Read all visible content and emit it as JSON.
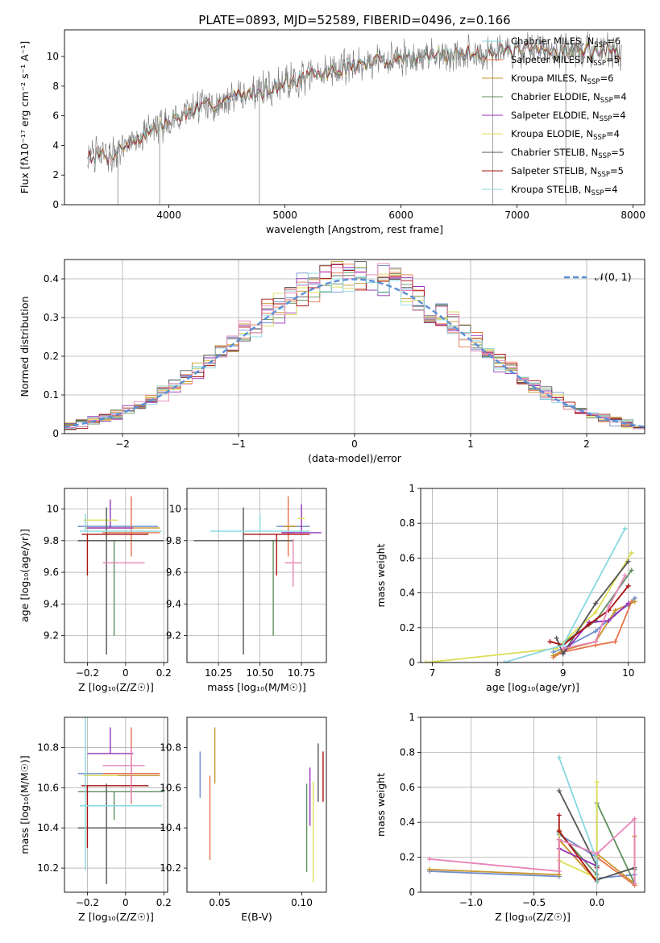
{
  "figure": {
    "title": "PLATE=0893, MJD=52589, FIBERID=0496, z=0.166"
  },
  "palette": [
    "#6f8fcf",
    "#e8734a",
    "#c8952e",
    "#5e8f5e",
    "#9932b8",
    "#dddd55",
    "#555555",
    "#aa1111",
    "#88d8e0",
    "#e884b8"
  ],
  "chart_data": [
    {
      "id": "spectrum",
      "type": "line",
      "xlabel": "wavelength [Angstrom, rest frame]",
      "ylabel": "Flux [fλ10⁻¹⁷ erg cm⁻² s⁻¹ A⁻¹]",
      "xlim": [
        3100,
        8100
      ],
      "ylim": [
        0,
        11.8
      ],
      "xticks": [
        4000,
        5000,
        6000,
        7000,
        8000
      ],
      "yticks": [
        0,
        2,
        4,
        6,
        8,
        10
      ],
      "grid": false,
      "legend_position": "top-right",
      "continuum_x": [
        3300,
        3500,
        3600,
        3800,
        4000,
        4200,
        4500,
        4800,
        5000,
        5300,
        5600,
        6000,
        6400,
        6800,
        7200,
        7600,
        7900
      ],
      "continuum_y": [
        3.4,
        3.3,
        3.9,
        4.8,
        5.6,
        6.3,
        7.1,
        7.7,
        8.2,
        8.8,
        9.4,
        9.9,
        10.1,
        10.3,
        10.4,
        10.4,
        10.3
      ],
      "legend": [
        {
          "label": "Chabrier MILES, N",
          "sub": "SSP",
          "suffix": "=6"
        },
        {
          "label": "Salpeter MILES, N",
          "sub": "SSP",
          "suffix": "=5"
        },
        {
          "label": "Kroupa MILES, N",
          "sub": "SSP",
          "suffix": "=6"
        },
        {
          "label": "Chabrier ELODIE, N",
          "sub": "SSP",
          "suffix": "=4"
        },
        {
          "label": "Salpeter ELODIE, N",
          "sub": "SSP",
          "suffix": "=4"
        },
        {
          "label": "Kroupa ELODIE, N",
          "sub": "SSP",
          "suffix": "=4"
        },
        {
          "label": "Chabrier STELIB, N",
          "sub": "SSP",
          "suffix": "=5"
        },
        {
          "label": "Salpeter STELIB, N",
          "sub": "SSP",
          "suffix": "=5"
        },
        {
          "label": "Kroupa STELIB, N",
          "sub": "SSP",
          "suffix": "=4"
        }
      ]
    },
    {
      "id": "residuals",
      "type": "line",
      "xlabel": "(data-model)/error",
      "ylabel": "Normed distribution",
      "xlim": [
        -2.5,
        2.5
      ],
      "ylim": [
        0,
        0.45
      ],
      "xticks": [
        -2,
        -1,
        0,
        1,
        2
      ],
      "yticks": [
        0.0,
        0.1,
        0.2,
        0.3,
        0.4
      ],
      "grid": true,
      "legend": "𝒩(0, 1)",
      "legend_position": "top-right",
      "bin_width": 0.1
    },
    {
      "id": "age-vs-Z",
      "type": "scatter",
      "xlabel": "Z [log₁₀(Z/Z☉)]",
      "ylabel": "age  [log₁₀(age/yr)]",
      "xlim": [
        -0.32,
        0.22
      ],
      "ylim": [
        9.03,
        10.13
      ],
      "xticks": [
        -0.2,
        0.0,
        0.2
      ],
      "yticks": [
        9.2,
        9.4,
        9.6,
        9.8,
        10.0
      ],
      "grid": true,
      "points": [
        {
          "x": -0.03,
          "y": 9.89,
          "xerr": [
            0.22,
            0.2
          ],
          "yerr": [
            0.0,
            0.0
          ]
        },
        {
          "x": 0.03,
          "y": 9.85,
          "xerr": [
            0.15,
            0.15
          ],
          "yerr": [
            0.15,
            0.23
          ]
        },
        {
          "x": 0.04,
          "y": 9.88,
          "xerr": [
            0.25,
            0.14
          ],
          "yerr": [
            0.0,
            0.0
          ]
        },
        {
          "x": -0.06,
          "y": 9.8,
          "xerr": [
            0.19,
            0.26
          ],
          "yerr": [
            0.6,
            0.0
          ]
        },
        {
          "x": -0.08,
          "y": 9.88,
          "xerr": [
            0.12,
            0.12
          ],
          "yerr": [
            0.0,
            0.18
          ]
        },
        {
          "x": -0.07,
          "y": 9.93,
          "xerr": [
            0.15,
            0.03
          ],
          "yerr": [
            0.0,
            0.0
          ]
        },
        {
          "x": -0.1,
          "y": 9.8,
          "xerr": [
            0.15,
            0.3
          ],
          "yerr": [
            0.72,
            0.21
          ]
        },
        {
          "x": -0.2,
          "y": 9.84,
          "xerr": [
            0.03,
            0.32
          ],
          "yerr": [
            0.26,
            0.0
          ]
        },
        {
          "x": -0.21,
          "y": 9.86,
          "xerr": [
            0.03,
            0.4
          ],
          "yerr": [
            0.0,
            0.11
          ]
        },
        {
          "x": 0.03,
          "y": 9.66,
          "xerr": [
            0.15,
            0.07
          ],
          "yerr": [
            0.0,
            0.0
          ]
        }
      ]
    },
    {
      "id": "age-vs-mass",
      "type": "scatter",
      "xlabel": "mass [log₁₀(M/M☉)]",
      "ylabel": "",
      "xlim": [
        10.06,
        10.9
      ],
      "ylim": [
        9.03,
        10.13
      ],
      "xticks": [
        10.25,
        10.5,
        10.75
      ],
      "xticklabels": [
        "10.25",
        "10.50",
        "10.75"
      ],
      "yticks": [
        9.2,
        9.4,
        9.6,
        9.8,
        10.0
      ],
      "grid": true,
      "points": [
        {
          "x": 10.7,
          "y": 9.89,
          "xerr": [
            0.1,
            0.1
          ],
          "yerr": [
            0.0,
            0.0
          ]
        },
        {
          "x": 10.67,
          "y": 9.85,
          "xerr": [
            0.04,
            0.04
          ],
          "yerr": [
            0.15,
            0.23
          ]
        },
        {
          "x": 10.68,
          "y": 9.89,
          "xerr": [
            0.04,
            0.04
          ],
          "yerr": [
            0.0,
            0.0
          ]
        },
        {
          "x": 10.58,
          "y": 9.8,
          "xerr": [
            0.02,
            0.02
          ],
          "yerr": [
            0.6,
            0.0
          ]
        },
        {
          "x": 10.75,
          "y": 9.85,
          "xerr": [
            0.12,
            0.12
          ],
          "yerr": [
            0.0,
            0.18
          ]
        },
        {
          "x": 10.75,
          "y": 9.94,
          "xerr": [
            0.02,
            0.02
          ],
          "yerr": [
            0.0,
            0.0
          ]
        },
        {
          "x": 10.4,
          "y": 9.8,
          "xerr": [
            0.3,
            0.3
          ],
          "yerr": [
            0.72,
            0.21
          ]
        },
        {
          "x": 10.6,
          "y": 9.84,
          "xerr": [
            0.2,
            0.2
          ],
          "yerr": [
            0.26,
            0.0
          ]
        },
        {
          "x": 10.5,
          "y": 9.86,
          "xerr": [
            0.3,
            0.3
          ],
          "yerr": [
            0.0,
            0.11
          ]
        },
        {
          "x": 10.7,
          "y": 9.66,
          "xerr": [
            0.05,
            0.05
          ],
          "yerr": [
            0.15,
            0.15
          ]
        }
      ]
    },
    {
      "id": "weight-vs-age",
      "type": "line",
      "xlabel": "age  [log₁₀(age/yr)]",
      "ylabel": "mass weight",
      "xlim": [
        6.82,
        10.25
      ],
      "ylim": [
        0,
        1.0
      ],
      "xticks": [
        7,
        8,
        9,
        10
      ],
      "yticks": [
        0.0,
        0.2,
        0.4,
        0.6,
        0.8,
        1.0
      ],
      "grid": true,
      "series": [
        {
          "x": [
            8.85,
            9.0,
            9.5,
            9.8,
            10.0,
            10.1
          ],
          "y": [
            0.06,
            0.08,
            0.18,
            0.28,
            0.33,
            0.37
          ]
        },
        {
          "x": [
            8.85,
            9.0,
            9.5,
            9.8,
            10.05
          ],
          "y": [
            0.03,
            0.06,
            0.1,
            0.12,
            0.35
          ]
        },
        {
          "x": [
            8.85,
            9.0,
            9.5,
            9.8,
            10.1
          ],
          "y": [
            0.04,
            0.07,
            0.12,
            0.3,
            0.35
          ]
        },
        {
          "x": [
            8.95,
            9.5,
            10.05
          ],
          "y": [
            0.1,
            0.24,
            0.53
          ]
        },
        {
          "x": [
            9.0,
            9.4,
            9.7,
            10.0
          ],
          "y": [
            0.05,
            0.23,
            0.24,
            0.34
          ]
        },
        {
          "x": [
            6.9,
            8.9,
            9.5,
            10.05
          ],
          "y": [
            0.0,
            0.08,
            0.29,
            0.63
          ]
        },
        {
          "x": [
            8.9,
            9.0,
            9.5,
            10.0
          ],
          "y": [
            0.14,
            0.05,
            0.34,
            0.58
          ]
        },
        {
          "x": [
            8.8,
            9.0,
            9.4,
            9.7,
            10.0
          ],
          "y": [
            0.12,
            0.1,
            0.22,
            0.3,
            0.44
          ]
        },
        {
          "x": [
            8.1,
            9.0,
            9.95
          ],
          "y": [
            0.0,
            0.1,
            0.77
          ]
        },
        {
          "x": [
            9.0,
            9.5,
            9.7,
            9.95
          ],
          "y": [
            0.08,
            0.12,
            0.32,
            0.5
          ]
        }
      ]
    },
    {
      "id": "mass-vs-Z",
      "type": "scatter",
      "xlabel": "Z [log₁₀(Z/Z☉)]",
      "ylabel": "mass [log₁₀(M/M☉)]",
      "xlim": [
        -0.32,
        0.22
      ],
      "ylim": [
        10.08,
        10.95
      ],
      "xticks": [
        -0.2,
        0.0,
        0.2
      ],
      "yticks": [
        10.2,
        10.4,
        10.6,
        10.8
      ],
      "grid": true,
      "points": [
        {
          "x": -0.03,
          "y": 10.67,
          "xerr": [
            0.22,
            0.2
          ],
          "yerr": [
            0.0,
            0.0
          ]
        },
        {
          "x": 0.03,
          "y": 10.67,
          "xerr": [
            0.15,
            0.15
          ],
          "yerr": [
            0.15,
            0.23
          ]
        },
        {
          "x": 0.04,
          "y": 10.66,
          "xerr": [
            0.25,
            0.14
          ],
          "yerr": [
            0.0,
            0.0
          ]
        },
        {
          "x": -0.06,
          "y": 10.58,
          "xerr": [
            0.19,
            0.26
          ],
          "yerr": [
            0.14,
            0.0
          ]
        },
        {
          "x": -0.08,
          "y": 10.77,
          "xerr": [
            0.12,
            0.12
          ],
          "yerr": [
            0.0,
            0.13
          ]
        },
        {
          "x": -0.07,
          "y": 10.66,
          "xerr": [
            0.15,
            0.03
          ],
          "yerr": [
            0.0,
            0.0
          ]
        },
        {
          "x": -0.1,
          "y": 10.4,
          "xerr": [
            0.15,
            0.3
          ],
          "yerr": [
            0.28,
            0.22
          ]
        },
        {
          "x": -0.2,
          "y": 10.61,
          "xerr": [
            0.03,
            0.32
          ],
          "yerr": [
            0.31,
            0.0
          ]
        },
        {
          "x": -0.21,
          "y": 10.51,
          "xerr": [
            0.03,
            0.4
          ],
          "yerr": [
            0.32,
            0.46
          ]
        },
        {
          "x": 0.03,
          "y": 10.71,
          "xerr": [
            0.15,
            0.07
          ],
          "yerr": [
            0.18,
            0.09
          ]
        }
      ]
    },
    {
      "id": "mass-vs-EBV",
      "type": "scatter",
      "xlabel": "E(B-V)",
      "ylabel": "",
      "xlim": [
        0.03,
        0.115
      ],
      "ylim": [
        10.08,
        10.95
      ],
      "xticks": [
        0.05,
        0.1
      ],
      "xticklabels": [
        "0.05",
        "0.10"
      ],
      "yticks": [
        10.2,
        10.4,
        10.6,
        10.8
      ],
      "grid": false,
      "points": [
        {
          "x": 0.038,
          "y": 10.66,
          "xerr": [
            0,
            0
          ],
          "yerr": [
            0.11,
            0.12
          ]
        },
        {
          "x": 0.044,
          "y": 10.46,
          "xerr": [
            0,
            0
          ],
          "yerr": [
            0.22,
            0.2
          ]
        },
        {
          "x": 0.047,
          "y": 10.76,
          "xerr": [
            0,
            0
          ],
          "yerr": [
            0.14,
            0.14
          ]
        },
        {
          "x": 0.103,
          "y": 10.38,
          "xerr": [
            0,
            0
          ],
          "yerr": [
            0.2,
            0.24
          ]
        },
        {
          "x": 0.105,
          "y": 10.55,
          "xerr": [
            0,
            0
          ],
          "yerr": [
            0.14,
            0.15
          ]
        },
        {
          "x": 0.107,
          "y": 10.38,
          "xerr": [
            0,
            0
          ],
          "yerr": [
            0.25,
            0.25
          ]
        },
        {
          "x": 0.11,
          "y": 10.68,
          "xerr": [
            0,
            0
          ],
          "yerr": [
            0.15,
            0.14
          ]
        },
        {
          "x": 0.113,
          "y": 10.66,
          "xerr": [
            0,
            0
          ],
          "yerr": [
            0.13,
            0.12
          ]
        }
      ]
    },
    {
      "id": "weight-vs-Z",
      "type": "line",
      "xlabel": "Z [log₁₀(Z/Z☉)]",
      "ylabel": "mass weight",
      "xlim": [
        -1.4,
        0.38
      ],
      "ylim": [
        0,
        1.0
      ],
      "xticks": [
        -1.0,
        -0.5,
        0.0
      ],
      "xticklabels": [
        "−1.0",
        "−0.5",
        "0.0"
      ],
      "yticks": [
        0.0,
        0.2,
        0.4,
        0.6,
        0.8,
        1.0
      ],
      "grid": true,
      "series": [
        {
          "x": [
            -1.33,
            -0.3,
            -0.3,
            0.0,
            0.0,
            0.3
          ],
          "y": [
            0.12,
            0.09,
            0.33,
            0.2,
            0.08,
            0.1
          ]
        },
        {
          "x": [
            -0.3,
            -0.3,
            0.0,
            0.0,
            0.3,
            0.3
          ],
          "y": [
            0.1,
            0.3,
            0.06,
            0.2,
            0.04,
            0.32
          ]
        },
        {
          "x": [
            -1.33,
            -0.3,
            -0.3,
            0.0,
            0.0,
            0.3,
            0.3
          ],
          "y": [
            0.13,
            0.1,
            0.3,
            0.06,
            0.22,
            0.05,
            0.32
          ]
        },
        {
          "x": [
            -0.3,
            0.0,
            0.0,
            0.3,
            0.3
          ],
          "y": [
            0.34,
            0.1,
            0.51,
            0.05,
            0.13
          ]
        },
        {
          "x": [
            -0.3,
            -0.3,
            0.0,
            0.0
          ],
          "y": [
            0.35,
            0.25,
            0.15,
            0.22
          ]
        },
        {
          "x": [
            -0.3,
            -0.3,
            0.0,
            0.0
          ],
          "y": [
            0.36,
            0.18,
            0.08,
            0.63
          ]
        },
        {
          "x": [
            -0.3,
            0.0,
            0.0,
            0.3
          ],
          "y": [
            0.58,
            0.15,
            0.07,
            0.14
          ]
        },
        {
          "x": [
            -0.3,
            -0.3,
            0.0,
            0.0
          ],
          "y": [
            0.44,
            0.35,
            0.06,
            0.14
          ]
        },
        {
          "x": [
            -0.3,
            0.0,
            0.0
          ],
          "y": [
            0.77,
            0.18,
            0.06
          ]
        },
        {
          "x": [
            -1.33,
            -0.3,
            -0.3,
            0.0,
            0.3,
            0.3
          ],
          "y": [
            0.19,
            0.12,
            0.3,
            0.22,
            0.42,
            0.05
          ]
        }
      ]
    }
  ]
}
